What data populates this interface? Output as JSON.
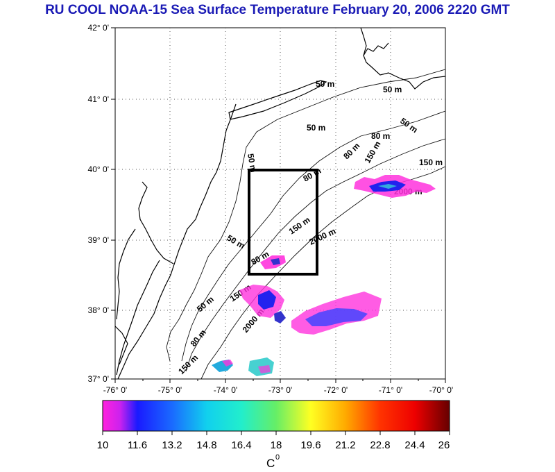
{
  "title": "RU COOL  NOAA-15 Sea Surface Temperature February 20, 2006 2220 GMT",
  "map": {
    "lat_labels": [
      "42° 0'",
      "41° 0'",
      "40° 0'",
      "39° 0'",
      "38° 0'",
      "37° 0'"
    ],
    "lon_labels": [
      "-76° 0'",
      "-75° 0'",
      "-74° 0'",
      "-73° 0'",
      "-72° 0'",
      "-71° 0'",
      "-70° 0'"
    ],
    "isobath_labels": [
      "50 m",
      "50 m",
      "50 m",
      "50 m",
      "80 m",
      "80 m",
      "150 m",
      "150 m",
      "2000 m",
      "50 m",
      "80 m",
      "150 m",
      "2000 m",
      "50 m",
      "80 m",
      "150 m",
      "2000 m",
      "80 m",
      "150 m",
      "50 m"
    ],
    "colors": {
      "land_outline": "#000000",
      "grid": "#555555",
      "study_box": "#000000",
      "sst_cold": "#ff33dd",
      "sst_blue": "#2020ee",
      "sst_cyan": "#33cccc"
    }
  },
  "colorbar": {
    "ticks": [
      "10",
      "11.6",
      "13.2",
      "14.8",
      "16.4",
      "18",
      "19.6",
      "21.2",
      "22.8",
      "24.4",
      "26"
    ],
    "unit": "C",
    "unit_sup": "0",
    "range": [
      10,
      26
    ]
  }
}
